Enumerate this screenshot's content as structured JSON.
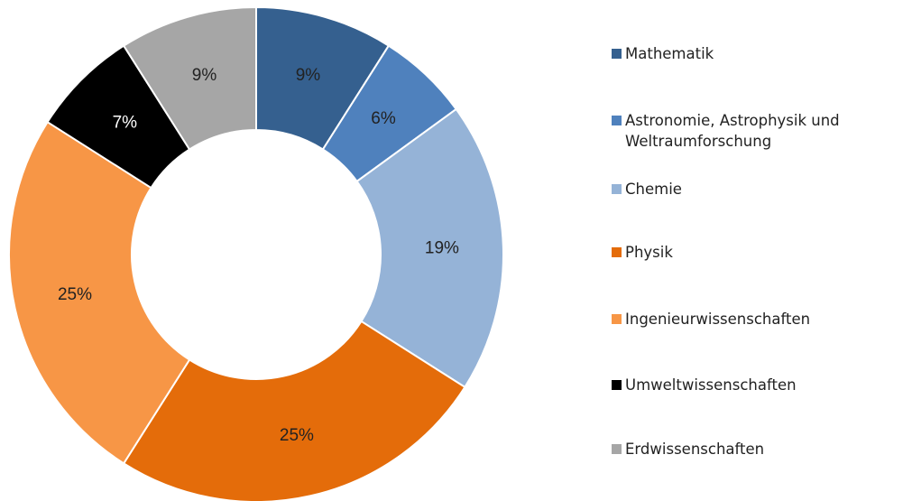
{
  "chart_data": {
    "type": "donut",
    "categories": [
      "Mathematik",
      "Astronomie, Astrophysik und Weltraumforschung",
      "Chemie",
      "Physik",
      "Ingenieurwissenschaften",
      "Umweltwissenschaften",
      "Erdwissenschaften"
    ],
    "values": [
      9,
      6,
      19,
      25,
      25,
      7,
      9
    ],
    "value_labels": [
      "9%",
      "6%",
      "19%",
      "25%",
      "25%",
      "7%",
      "9%"
    ],
    "colors": [
      "#35608f",
      "#4f81bd",
      "#95b3d7",
      "#e46c0a",
      "#f79646",
      "#000000",
      "#a6a6a6"
    ],
    "legend": "right"
  }
}
